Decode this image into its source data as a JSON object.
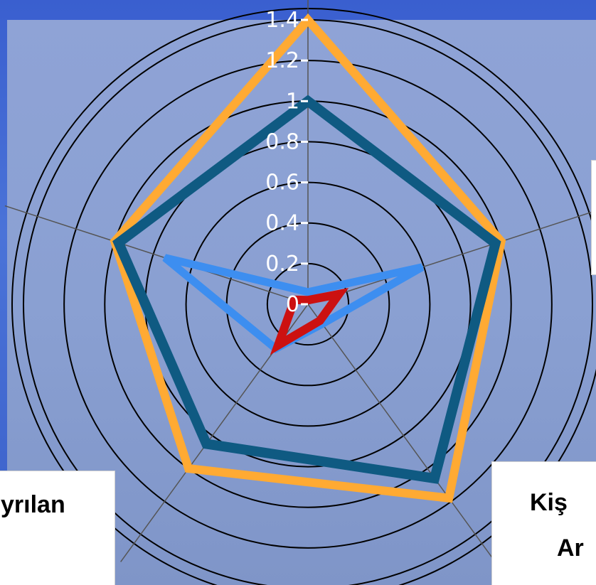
{
  "chart_data": {
    "type": "radar",
    "scale_ticks": [
      "0",
      "0.2",
      "0.4",
      "0.6",
      "0.8",
      "1",
      "1.2",
      "1.4"
    ],
    "scale_max": 1.4,
    "axes_count": 5,
    "grid": true,
    "series": [
      {
        "color": "#ffaa33",
        "values": [
          1.4,
          1.0,
          1.18,
          1.0,
          1.0
        ]
      },
      {
        "color": "#0f5a82",
        "values": [
          1.0,
          0.97,
          1.06,
          0.85,
          0.98
        ]
      },
      {
        "color": "#3d8ef0",
        "values": [
          0.06,
          0.59,
          0.12,
          0.27,
          0.74
        ]
      },
      {
        "color": "#cc1111",
        "values": [
          0.02,
          0.16,
          0.1,
          0.25,
          0.07
        ]
      }
    ]
  },
  "axis_labels": {
    "left": "yrılan",
    "bottom_right_line1": "Kiş",
    "bottom_right_line2": "Ar"
  },
  "colors": {
    "background": "#3a5fcf",
    "plot_area": "#8aa0d2",
    "grid_circle": "#000000",
    "axis_line": "#555555"
  }
}
